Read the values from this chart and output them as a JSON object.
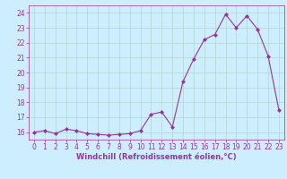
{
  "x": [
    0,
    1,
    2,
    3,
    4,
    5,
    6,
    7,
    8,
    9,
    10,
    11,
    12,
    13,
    14,
    15,
    16,
    17,
    18,
    19,
    20,
    21,
    22,
    23
  ],
  "y": [
    16.0,
    16.1,
    15.9,
    16.2,
    16.1,
    15.9,
    15.85,
    15.8,
    15.85,
    15.9,
    16.1,
    17.2,
    17.35,
    16.35,
    19.4,
    20.9,
    22.2,
    22.55,
    23.9,
    23.0,
    23.8,
    22.9,
    21.1,
    17.5
  ],
  "line_color": "#993399",
  "marker": "D",
  "marker_size": 2.0,
  "background_color": "#cceeff",
  "grid_color": "#b0d8cc",
  "xlabel": "Windchill (Refroidissement éolien,°C)",
  "xlim": [
    -0.5,
    23.5
  ],
  "ylim": [
    15.5,
    24.5
  ],
  "yticks": [
    16,
    17,
    18,
    19,
    20,
    21,
    22,
    23,
    24
  ],
  "xticks": [
    0,
    1,
    2,
    3,
    4,
    5,
    6,
    7,
    8,
    9,
    10,
    11,
    12,
    13,
    14,
    15,
    16,
    17,
    18,
    19,
    20,
    21,
    22,
    23
  ],
  "xlabel_color": "#993399",
  "tick_color": "#993399",
  "spine_color": "#993399",
  "tick_fontsize": 5.5,
  "xlabel_fontsize": 6.0,
  "linewidth": 0.8
}
